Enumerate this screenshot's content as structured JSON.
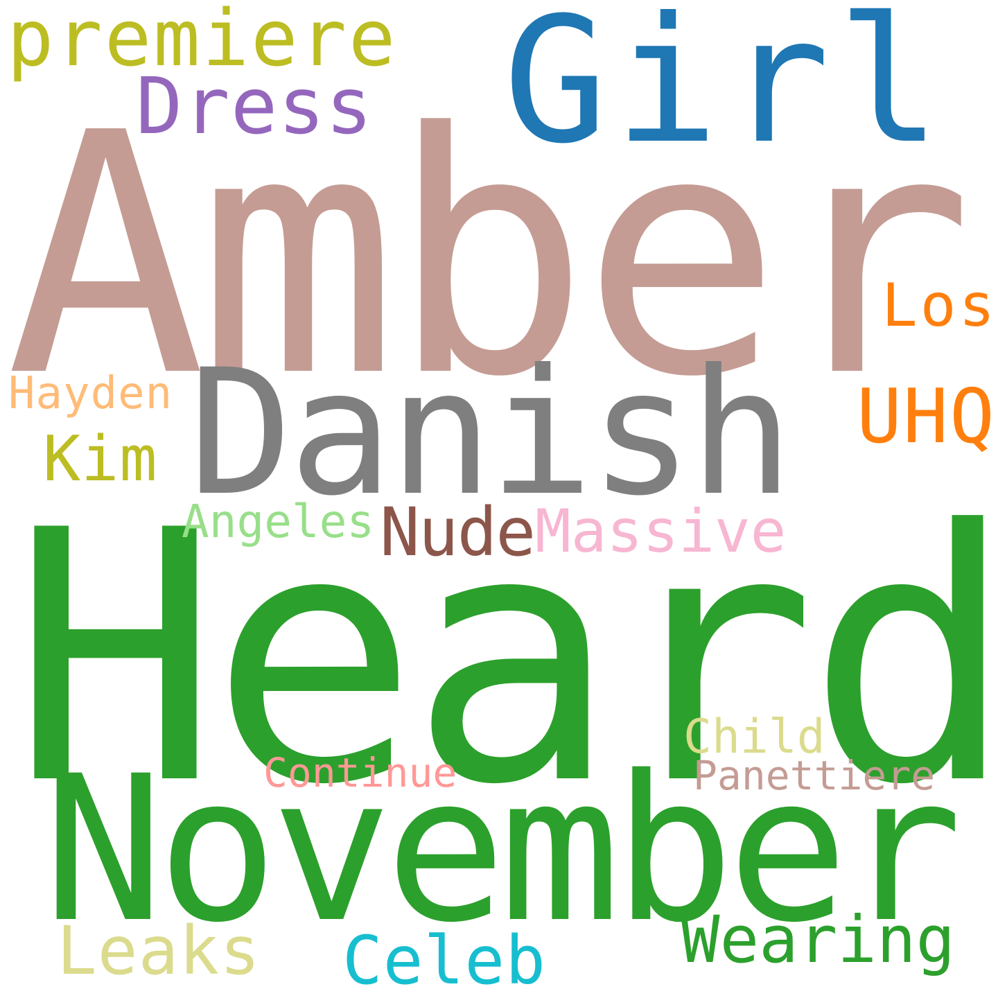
{
  "colors": {
    "background": "#ffffff"
  },
  "words": [
    {
      "key": "amber",
      "text": "Amber",
      "color": "#c49c94"
    },
    {
      "key": "heard",
      "text": "Heard",
      "color": "#2ca02c"
    },
    {
      "key": "november",
      "text": "November",
      "color": "#2ca02c"
    },
    {
      "key": "danish",
      "text": "Danish",
      "color": "#7f7f7f"
    },
    {
      "key": "girl",
      "text": "Girl",
      "color": "#1f77b4"
    },
    {
      "key": "premiere",
      "text": "premiere",
      "color": "#bcbd22"
    },
    {
      "key": "dress",
      "text": "Dress",
      "color": "#9467bd"
    },
    {
      "key": "los",
      "text": "Los",
      "color": "#ff7f0e"
    },
    {
      "key": "uhq",
      "text": "UHQ",
      "color": "#ff7f0e"
    },
    {
      "key": "hayden",
      "text": "Hayden",
      "color": "#ffbb78"
    },
    {
      "key": "kim",
      "text": "Kim",
      "color": "#bcbd22"
    },
    {
      "key": "angeles",
      "text": "Angeles",
      "color": "#98df8a"
    },
    {
      "key": "nude",
      "text": "Nude",
      "color": "#8c564b"
    },
    {
      "key": "massive",
      "text": "Massive",
      "color": "#f7b6d2"
    },
    {
      "key": "child",
      "text": "Child",
      "color": "#dbdb8d"
    },
    {
      "key": "continue",
      "text": "Continue",
      "color": "#ff9896"
    },
    {
      "key": "panettiere",
      "text": "Panettiere",
      "color": "#c49c94"
    },
    {
      "key": "leaks",
      "text": "Leaks",
      "color": "#dbdb8d"
    },
    {
      "key": "celeb",
      "text": "Celeb",
      "color": "#17becf"
    },
    {
      "key": "wearing",
      "text": "Wearing",
      "color": "#2ca02c"
    }
  ]
}
